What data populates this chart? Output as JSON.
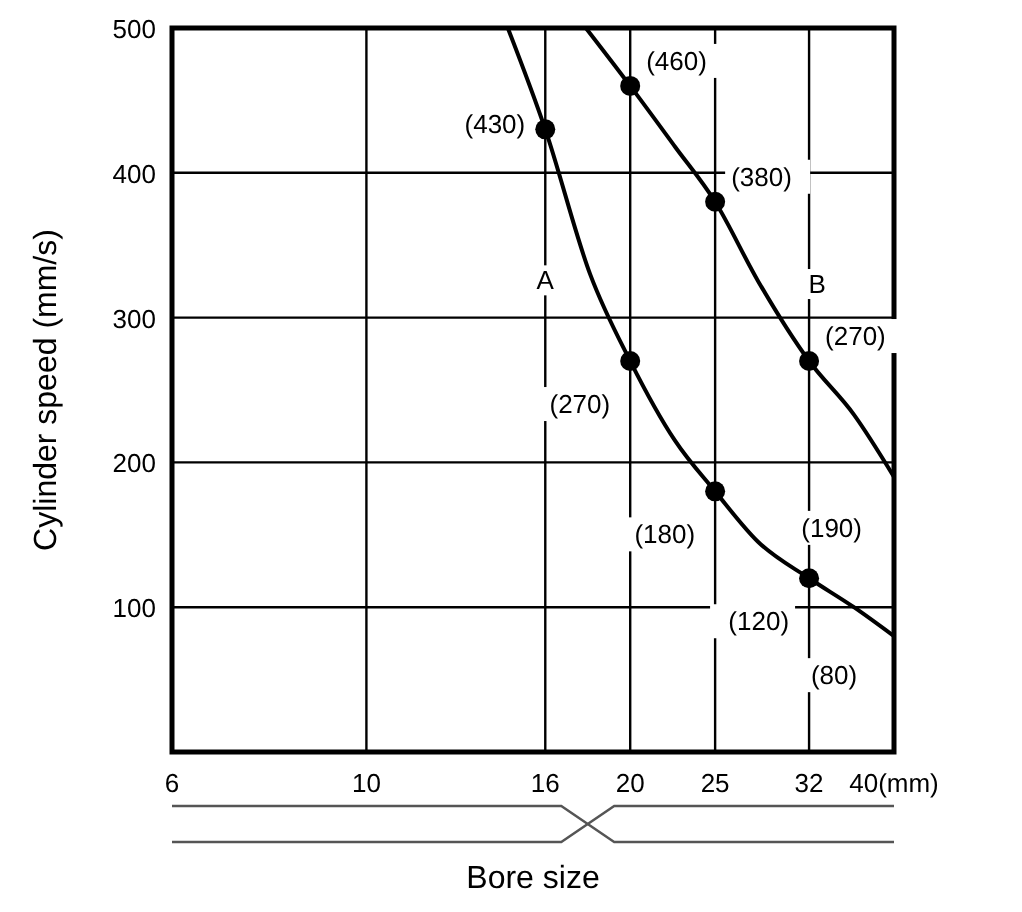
{
  "chart_data": {
    "type": "line",
    "xlabel": "Bore size",
    "ylabel": "Cylinder speed (mm/s)",
    "log": "x",
    "xlim": [
      6,
      40
    ],
    "xticks": [
      6,
      10,
      16,
      20,
      25,
      32,
      {
        "value": 40,
        "label": "40(mm)"
      }
    ],
    "ylim": [
      0,
      500
    ],
    "yticks": [
      100,
      200,
      300,
      400,
      500
    ],
    "grid": true,
    "line_style": "solid",
    "series": [
      {
        "name": "A",
        "color": "#000000",
        "marker": "none",
        "x": [
          14.5,
          16,
          18,
          20,
          22.5,
          25,
          28,
          32,
          36,
          40
        ],
        "values": [
          500,
          430,
          330,
          270,
          215,
          180,
          145,
          120,
          100,
          80
        ],
        "value_labels": [
          null,
          "(430)",
          null,
          "(270)",
          null,
          "(180)",
          null,
          "(120)",
          null,
          "(80)"
        ]
      },
      {
        "name": "B",
        "color": "#000000",
        "marker": "none",
        "x": [
          17.8,
          20,
          22.5,
          25,
          28,
          32,
          36,
          40
        ],
        "values": [
          500,
          460,
          418,
          380,
          325,
          270,
          233,
          190
        ],
        "value_labels": [
          null,
          "(460)",
          null,
          "(380)",
          null,
          "(270)",
          null,
          "(190)"
        ]
      },
      {
        "type": "scatter",
        "color": "#000000",
        "marker": "circle",
        "x": [
          16,
          20,
          25,
          32
        ],
        "values": [
          430,
          270,
          180,
          120
        ]
      },
      {
        "type": "scatter",
        "color": "#000000",
        "marker": "circle",
        "x": [
          20,
          25,
          32
        ],
        "values": [
          460,
          380,
          270
        ]
      }
    ]
  }
}
